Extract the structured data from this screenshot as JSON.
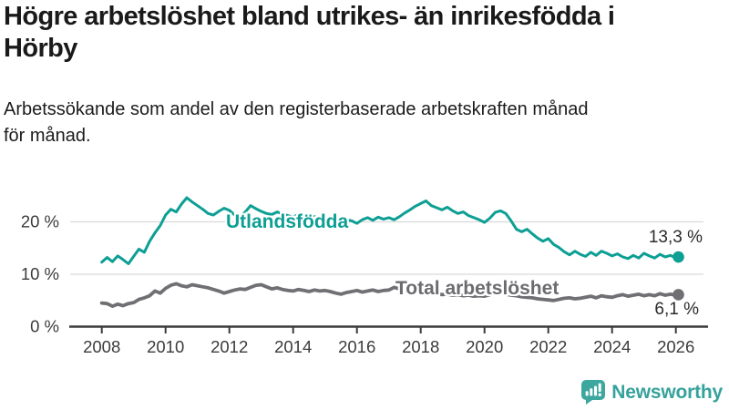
{
  "header": {
    "title_lines": [
      "Högre arbetslöshet bland utrikes- än inrikesfödda i",
      "Hörby"
    ],
    "subtitle_lines": [
      "Arbetssökande som andel av den registerbaserade arbetskraften månad",
      "för månad."
    ]
  },
  "colors": {
    "teal": "#0d9f94",
    "gray": "#707074",
    "gray_label": "#6b6b70",
    "axis": "#3b3b3b",
    "grid": "#d9d9d9",
    "logo": "#3da79f",
    "logo_text": "#35a29b"
  },
  "chart_data": {
    "type": "line",
    "unit": "%",
    "grid": "horizontal",
    "x_axis": {
      "range": [
        2007.3,
        2026.95
      ],
      "ticks": [
        2008,
        2010,
        2012,
        2014,
        2016,
        2018,
        2020,
        2022,
        2024,
        2026
      ]
    },
    "y_axis": {
      "range": [
        0,
        26
      ],
      "ticks": [
        {
          "value": 0,
          "label": "0 %"
        },
        {
          "value": 10,
          "label": "10 %"
        },
        {
          "value": 20,
          "label": "20 %"
        }
      ]
    },
    "series": [
      {
        "id": "utlandsfodda",
        "name": "Utlandsfödda",
        "color": "#0d9f94",
        "line_width": 3,
        "x_start": 2008,
        "x_step": 0.16667,
        "values": [
          12.3,
          13.2,
          12.4,
          13.5,
          12.8,
          12.0,
          13.4,
          14.8,
          14.2,
          16.3,
          17.9,
          19.3,
          21.3,
          22.4,
          21.9,
          23.4,
          24.6,
          23.8,
          23.1,
          22.4,
          21.6,
          21.3,
          22.0,
          22.6,
          22.2,
          21.3,
          20.9,
          21.9,
          23.1,
          22.5,
          22.0,
          21.6,
          21.4,
          21.9,
          21.5,
          21.2,
          20.9,
          21.4,
          21.1,
          20.7,
          21.0,
          20.8,
          20.6,
          20.9,
          20.4,
          20.1,
          20.4,
          20.2,
          19.7,
          20.4,
          20.8,
          20.3,
          20.9,
          20.5,
          20.8,
          20.4,
          21.0,
          21.7,
          22.3,
          23.0,
          23.5,
          24.0,
          23.1,
          22.7,
          22.3,
          22.8,
          22.1,
          21.6,
          21.9,
          21.2,
          20.8,
          20.4,
          19.9,
          20.7,
          21.8,
          22.1,
          21.6,
          20.2,
          18.6,
          18.1,
          18.6,
          17.7,
          16.9,
          16.3,
          16.8,
          15.7,
          15.1,
          14.3,
          13.7,
          14.4,
          13.8,
          13.4,
          14.2,
          13.6,
          14.4,
          14.0,
          13.5,
          13.9,
          13.3,
          13.0,
          13.6,
          13.1,
          14.0,
          13.5,
          13.1,
          13.8,
          13.3,
          13.6,
          13.1
        ],
        "end_point": {
          "x": 2026.08,
          "value": 13.3
        },
        "end_label": "13,3 %"
      },
      {
        "id": "total-arbetsloshet",
        "name": "Total arbetslöshet",
        "color": "#707074",
        "line_width": 3.8,
        "x_start": 2008,
        "x_step": 0.16667,
        "values": [
          4.5,
          4.4,
          3.9,
          4.3,
          4.0,
          4.4,
          4.6,
          5.2,
          5.5,
          5.9,
          6.8,
          6.4,
          7.3,
          7.9,
          8.2,
          7.8,
          7.6,
          8.0,
          7.8,
          7.6,
          7.4,
          7.1,
          6.8,
          6.4,
          6.7,
          7.0,
          7.2,
          7.1,
          7.5,
          7.9,
          8.0,
          7.6,
          7.2,
          7.4,
          7.1,
          6.9,
          6.8,
          7.1,
          6.9,
          6.7,
          7.0,
          6.8,
          6.9,
          6.7,
          6.4,
          6.2,
          6.5,
          6.7,
          6.9,
          6.6,
          6.8,
          7.0,
          6.7,
          6.9,
          7.0,
          7.5,
          7.2,
          6.9,
          6.7,
          6.5,
          6.6,
          6.4,
          6.5,
          6.3,
          6.1,
          6.2,
          6.0,
          6.1,
          5.9,
          6.0,
          5.8,
          5.9,
          5.8,
          6.1,
          6.5,
          6.4,
          6.2,
          6.0,
          5.9,
          5.7,
          5.6,
          5.5,
          5.3,
          5.2,
          5.1,
          5.0,
          5.2,
          5.4,
          5.5,
          5.3,
          5.4,
          5.6,
          5.8,
          5.5,
          5.9,
          5.7,
          5.6,
          5.9,
          6.1,
          5.8,
          6.0,
          6.2,
          5.9,
          6.1,
          5.9,
          6.3,
          6.0,
          6.2,
          6.0
        ],
        "end_point": {
          "x": 2026.08,
          "value": 6.1
        },
        "end_label": "6,1 %"
      }
    ]
  },
  "branding": {
    "logo_text": "Newsworthy"
  }
}
